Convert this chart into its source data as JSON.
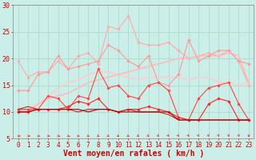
{
  "xlabel": "Vent moyen/en rafales ( km/h )",
  "xlim": [
    -0.5,
    23.5
  ],
  "ylim": [
    5,
    30
  ],
  "yticks": [
    5,
    10,
    15,
    20,
    25,
    30
  ],
  "xticks": [
    0,
    1,
    2,
    3,
    4,
    5,
    6,
    7,
    8,
    9,
    10,
    11,
    12,
    13,
    14,
    15,
    16,
    17,
    18,
    19,
    20,
    21,
    22,
    23
  ],
  "background_color": "#cceee8",
  "grid_color": "#aaddcc",
  "series": [
    {
      "x": [
        0,
        1,
        2,
        3,
        4,
        5,
        6,
        7,
        8,
        9,
        10,
        11,
        12,
        13,
        14,
        15,
        16,
        17,
        18,
        19,
        20,
        21,
        22,
        23
      ],
      "y": [
        19.5,
        16.5,
        17.5,
        17.5,
        19.5,
        18.0,
        20.5,
        21.0,
        19.0,
        26.0,
        25.5,
        28.0,
        23.0,
        22.5,
        22.5,
        23.0,
        21.5,
        20.0,
        20.5,
        21.0,
        20.5,
        21.5,
        19.5,
        15.0
      ],
      "color": "#ffaaaa",
      "lw": 0.8,
      "marker": "D",
      "ms": 1.8
    },
    {
      "x": [
        0,
        1,
        2,
        3,
        4,
        5,
        6,
        7,
        8,
        9,
        10,
        11,
        12,
        13,
        14,
        15,
        16,
        17,
        18,
        19,
        20,
        21,
        22,
        23
      ],
      "y": [
        10.0,
        10.5,
        11.5,
        13.0,
        14.5,
        15.5,
        16.0,
        17.0,
        17.5,
        17.5,
        17.0,
        16.5,
        16.0,
        16.5,
        16.5,
        16.5,
        16.5,
        16.0,
        16.5,
        16.5,
        15.5,
        15.5,
        15.0,
        15.5
      ],
      "color": "#ffcccc",
      "lw": 1.2,
      "marker": null,
      "ms": 0
    },
    {
      "x": [
        0,
        1,
        2,
        3,
        4,
        5,
        6,
        7,
        8,
        9,
        10,
        11,
        12,
        13,
        14,
        15,
        16,
        17,
        18,
        19,
        20,
        21,
        22,
        23
      ],
      "y": [
        10.0,
        10.0,
        11.5,
        12.5,
        13.0,
        13.5,
        14.5,
        15.5,
        16.0,
        16.5,
        17.0,
        17.5,
        18.0,
        18.5,
        19.0,
        19.5,
        20.0,
        20.0,
        20.5,
        20.5,
        20.5,
        21.0,
        20.5,
        15.5
      ],
      "color": "#ffbbbb",
      "lw": 1.2,
      "marker": null,
      "ms": 0
    },
    {
      "x": [
        0,
        1,
        2,
        3,
        4,
        5,
        6,
        7,
        8,
        9,
        10,
        11,
        12,
        13,
        14,
        15,
        16,
        17,
        18,
        19,
        20,
        21,
        22,
        23
      ],
      "y": [
        14.0,
        14.0,
        17.0,
        17.5,
        20.5,
        18.0,
        18.5,
        19.0,
        19.5,
        22.5,
        21.5,
        19.5,
        18.5,
        20.5,
        15.5,
        15.0,
        17.0,
        23.5,
        19.5,
        20.5,
        21.5,
        21.5,
        19.5,
        19.0
      ],
      "color": "#ff9999",
      "lw": 0.8,
      "marker": "D",
      "ms": 1.8
    },
    {
      "x": [
        0,
        1,
        2,
        3,
        4,
        5,
        6,
        7,
        8,
        9,
        10,
        11,
        12,
        13,
        14,
        15,
        16,
        17,
        18,
        19,
        20,
        21,
        22,
        23
      ],
      "y": [
        10.5,
        10.5,
        10.5,
        13.0,
        12.5,
        10.5,
        13.0,
        12.5,
        18.0,
        14.5,
        15.0,
        13.0,
        12.5,
        15.0,
        15.5,
        14.0,
        9.0,
        8.5,
        12.5,
        14.5,
        15.0,
        15.5,
        11.5,
        8.5
      ],
      "color": "#ff4444",
      "lw": 0.8,
      "marker": "D",
      "ms": 1.8
    },
    {
      "x": [
        0,
        1,
        2,
        3,
        4,
        5,
        6,
        7,
        8,
        9,
        10,
        11,
        12,
        13,
        14,
        15,
        16,
        17,
        18,
        19,
        20,
        21,
        22,
        23
      ],
      "y": [
        10.0,
        10.0,
        10.5,
        10.5,
        10.5,
        11.0,
        12.0,
        11.5,
        12.5,
        10.5,
        10.0,
        10.5,
        10.5,
        11.0,
        10.5,
        10.0,
        9.0,
        8.5,
        8.5,
        11.5,
        12.5,
        12.0,
        8.5,
        8.5
      ],
      "color": "#ff2222",
      "lw": 0.8,
      "marker": "D",
      "ms": 1.8
    },
    {
      "x": [
        0,
        1,
        2,
        3,
        4,
        5,
        6,
        7,
        8,
        9,
        10,
        11,
        12,
        13,
        14,
        15,
        16,
        17,
        18,
        19,
        20,
        21,
        22,
        23
      ],
      "y": [
        10.5,
        11.0,
        10.5,
        10.5,
        10.5,
        10.5,
        10.0,
        10.5,
        10.5,
        10.5,
        10.0,
        10.5,
        10.0,
        10.0,
        10.0,
        9.5,
        8.5,
        8.5,
        8.5,
        8.5,
        8.5,
        8.5,
        8.5,
        8.5
      ],
      "color": "#cc2222",
      "lw": 0.8,
      "marker": null,
      "ms": 0
    },
    {
      "x": [
        0,
        1,
        2,
        3,
        4,
        5,
        6,
        7,
        8,
        9,
        10,
        11,
        12,
        13,
        14,
        15,
        16,
        17,
        18,
        19,
        20,
        21,
        22,
        23
      ],
      "y": [
        10.0,
        10.0,
        10.5,
        10.5,
        10.5,
        10.5,
        10.5,
        10.0,
        10.5,
        10.5,
        10.0,
        10.0,
        10.0,
        10.0,
        10.0,
        10.0,
        8.5,
        8.5,
        8.5,
        8.5,
        8.5,
        8.5,
        8.5,
        8.5
      ],
      "color": "#aa0000",
      "lw": 0.8,
      "marker": null,
      "ms": 0
    }
  ],
  "arrow_color": "#ff4444",
  "xlabel_color": "#cc0000",
  "xlabel_fontsize": 7,
  "tick_fontsize": 5.5,
  "ytick_fontsize": 6
}
